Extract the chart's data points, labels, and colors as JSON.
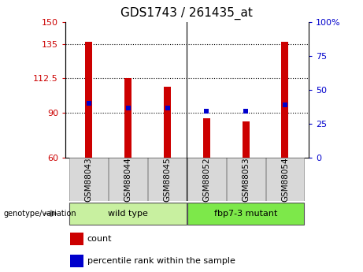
{
  "title": "GDS1743 / 261435_at",
  "samples": [
    "GSM88043",
    "GSM88044",
    "GSM88045",
    "GSM88052",
    "GSM88053",
    "GSM88054"
  ],
  "bar_values": [
    137,
    113,
    107,
    86,
    84,
    137
  ],
  "bar_bottom": 60,
  "percentile_values_left": [
    96,
    93,
    93,
    91,
    91,
    95
  ],
  "groups": [
    {
      "label": "wild type",
      "indices": [
        0,
        1,
        2
      ],
      "color": "#c8f0a0"
    },
    {
      "label": "fbp7-3 mutant",
      "indices": [
        3,
        4,
        5
      ],
      "color": "#7de84a"
    }
  ],
  "group_label": "genotype/variation",
  "ylim_left": [
    60,
    150
  ],
  "ylim_right": [
    0,
    100
  ],
  "yticks_left": [
    60,
    90,
    112.5,
    135,
    150
  ],
  "ytick_labels_left": [
    "60",
    "90",
    "112.5",
    "135",
    "150"
  ],
  "yticks_right": [
    0,
    25,
    50,
    75,
    100
  ],
  "ytick_labels_right": [
    "0",
    "25",
    "50",
    "75",
    "100%"
  ],
  "hlines": [
    90,
    112.5,
    135
  ],
  "bar_color": "#cc0000",
  "percentile_color": "#0000cc",
  "bar_width": 0.18,
  "legend_count_label": "count",
  "legend_percentile_label": "percentile rank within the sample"
}
